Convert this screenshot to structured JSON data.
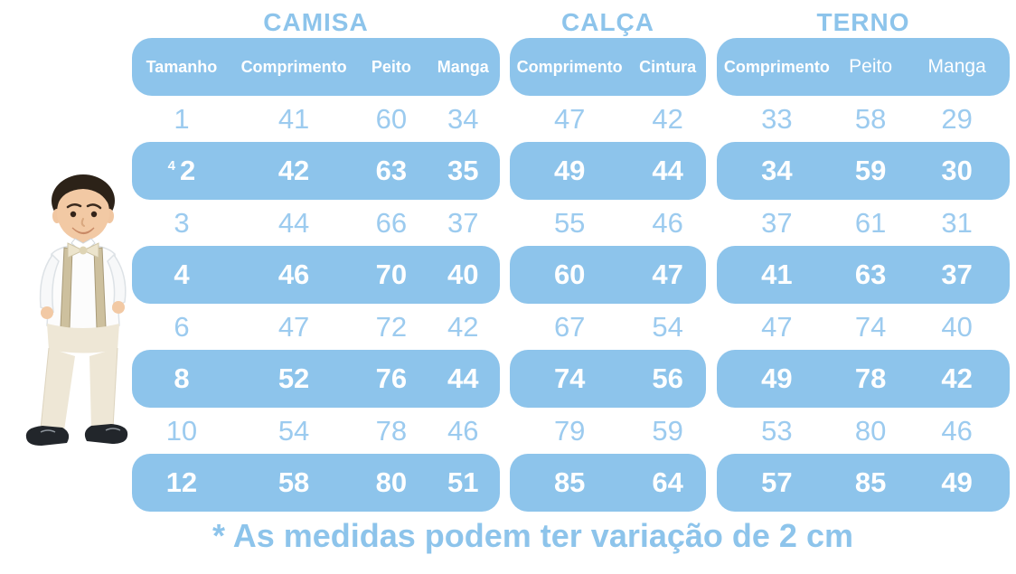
{
  "colors": {
    "accent": "#8dc4eb",
    "row_text": "#9ccbef",
    "highlight_text": "#ffffff"
  },
  "photo": {
    "description": "Menino vestindo camisa social branca com gravata borboleta, suspensorio e calca bege"
  },
  "chart_data": {
    "type": "table",
    "sections": [
      {
        "key": "camisa",
        "title": "CAMISA",
        "columns": [
          "Tamanho",
          "Comprimento",
          "Peito",
          "Manga"
        ]
      },
      {
        "key": "calca",
        "title": "CALÇA",
        "columns": [
          "Comprimento",
          "Cintura"
        ]
      },
      {
        "key": "terno",
        "title": "TERNO",
        "columns": [
          "Comprimento",
          "Peito",
          "Manga"
        ]
      }
    ],
    "rows": [
      {
        "size": "1",
        "size_note": "",
        "camisa": [
          41,
          60,
          34
        ],
        "calca": [
          47,
          42
        ],
        "terno": [
          33,
          58,
          29
        ],
        "highlighted": false
      },
      {
        "size": "2",
        "size_note": "4",
        "camisa": [
          42,
          63,
          35
        ],
        "calca": [
          49,
          44
        ],
        "terno": [
          34,
          59,
          30
        ],
        "highlighted": true
      },
      {
        "size": "3",
        "size_note": "",
        "camisa": [
          44,
          66,
          37
        ],
        "calca": [
          55,
          46
        ],
        "terno": [
          37,
          61,
          31
        ],
        "highlighted": false
      },
      {
        "size": "4",
        "size_note": "",
        "camisa": [
          46,
          70,
          40
        ],
        "calca": [
          60,
          47
        ],
        "terno": [
          41,
          63,
          37
        ],
        "highlighted": true
      },
      {
        "size": "6",
        "size_note": "",
        "camisa": [
          47,
          72,
          42
        ],
        "calca": [
          67,
          54
        ],
        "terno": [
          47,
          74,
          40
        ],
        "highlighted": false
      },
      {
        "size": "8",
        "size_note": "",
        "camisa": [
          52,
          76,
          44
        ],
        "calca": [
          74,
          56
        ],
        "terno": [
          49,
          78,
          42
        ],
        "highlighted": true
      },
      {
        "size": "10",
        "size_note": "",
        "camisa": [
          54,
          78,
          46
        ],
        "calca": [
          79,
          59
        ],
        "terno": [
          53,
          80,
          46
        ],
        "highlighted": false
      },
      {
        "size": "12",
        "size_note": "",
        "camisa": [
          58,
          80,
          51
        ],
        "calca": [
          85,
          64
        ],
        "terno": [
          57,
          85,
          49
        ],
        "highlighted": true
      }
    ],
    "footnote": "* As medidas podem ter variação de 2 cm"
  }
}
